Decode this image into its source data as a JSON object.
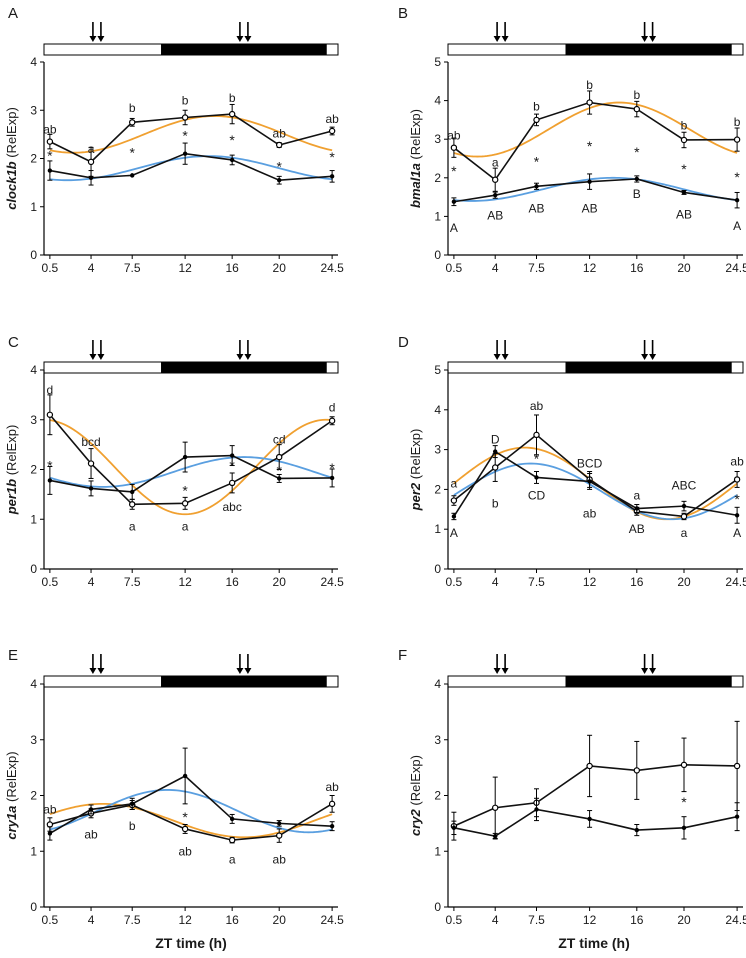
{
  "figure": {
    "xlabel": "ZT time (h)",
    "x_ticks": [
      "0.5",
      "4",
      "7.5",
      "12",
      "16",
      "20",
      "24.5"
    ],
    "colors": {
      "line": "#111111",
      "orange_fit": "#f0a030",
      "blue_fit": "#5a9fe0",
      "dark_bar": "#000000",
      "light_bar": "#ffffff"
    }
  },
  "chart_data": [
    {
      "panel": "A",
      "type": "line",
      "gene": "clock1b",
      "ylabel_suffix": " (RelExp)",
      "x": [
        0.5,
        4,
        7.5,
        12,
        16,
        20,
        24.5
      ],
      "ylim": [
        0,
        4
      ],
      "yticks": [
        "0",
        "1",
        "2",
        "3",
        "4"
      ],
      "light_dark": [
        {
          "from": 0,
          "to": 10,
          "phase": "light"
        },
        {
          "from": 10,
          "to": 24,
          "phase": "dark"
        },
        {
          "from": 24,
          "to": 25,
          "phase": "light"
        }
      ],
      "arrow_times": [
        4.5,
        17
      ],
      "series": [
        {
          "name": "upper",
          "marker": "open",
          "values": [
            2.35,
            1.93,
            2.75,
            2.85,
            2.92,
            2.28,
            2.57
          ],
          "errors": [
            0.15,
            0.3,
            0.08,
            0.15,
            0.2,
            0.05,
            0.08
          ]
        },
        {
          "name": "lower",
          "marker": "filled",
          "values": [
            1.75,
            1.6,
            1.65,
            2.1,
            1.97,
            1.55,
            1.63
          ],
          "errors": [
            0.2,
            0.15,
            0.0,
            0.22,
            0.1,
            0.08,
            0.12
          ]
        }
      ],
      "fits": [
        {
          "name": "orange",
          "mesor": 2.5,
          "amp": 0.38,
          "peak": 14.5
        },
        {
          "name": "blue",
          "mesor": 1.8,
          "amp": 0.25,
          "peak": 14.0
        }
      ],
      "labels": [
        {
          "text": "ab",
          "x": 0.5,
          "y": 2.6
        },
        {
          "text": "a",
          "x": 4,
          "y": 2.2
        },
        {
          "text": "b",
          "x": 7.5,
          "y": 3.05
        },
        {
          "text": "b",
          "x": 12,
          "y": 3.2
        },
        {
          "text": "b",
          "x": 16,
          "y": 3.25
        },
        {
          "text": "ab",
          "x": 20,
          "y": 2.52
        },
        {
          "text": "ab",
          "x": 24.5,
          "y": 2.82
        }
      ],
      "stars": [
        {
          "x": 0.5,
          "y": 2.08
        },
        {
          "x": 7.5,
          "y": 2.15
        },
        {
          "x": 12,
          "y": 2.5
        },
        {
          "x": 16,
          "y": 2.4
        },
        {
          "x": 20,
          "y": 1.85
        },
        {
          "x": 24.5,
          "y": 2.05
        }
      ]
    },
    {
      "panel": "B",
      "type": "line",
      "gene": "bmal1a",
      "ylabel_suffix": " (RelExp)",
      "x": [
        0.5,
        4,
        7.5,
        12,
        16,
        20,
        24.5
      ],
      "ylim": [
        0,
        5
      ],
      "yticks": [
        "0",
        "1",
        "2",
        "3",
        "4",
        "5"
      ],
      "light_dark": [
        {
          "from": 0,
          "to": 10,
          "phase": "light"
        },
        {
          "from": 10,
          "to": 24,
          "phase": "dark"
        },
        {
          "from": 24,
          "to": 25,
          "phase": "light"
        }
      ],
      "arrow_times": [
        4.5,
        17
      ],
      "series": [
        {
          "name": "upper",
          "marker": "open",
          "values": [
            2.78,
            1.95,
            3.5,
            3.95,
            3.78,
            2.98,
            2.99
          ],
          "errors": [
            0.25,
            0.3,
            0.15,
            0.3,
            0.2,
            0.2,
            0.3
          ]
        },
        {
          "name": "lower",
          "marker": "filled",
          "values": [
            1.38,
            1.55,
            1.78,
            1.9,
            1.97,
            1.62,
            1.42
          ],
          "errors": [
            0.1,
            0.08,
            0.08,
            0.2,
            0.08,
            0.05,
            0.2
          ]
        }
      ],
      "fits": [
        {
          "name": "orange",
          "mesor": 3.25,
          "amp": 0.7,
          "peak": 14.5
        },
        {
          "name": "blue",
          "mesor": 1.7,
          "amp": 0.3,
          "peak": 14.0
        }
      ],
      "labels": [
        {
          "text": "ab",
          "x": 0.5,
          "y": 3.1
        },
        {
          "text": "a",
          "x": 4,
          "y": 2.4
        },
        {
          "text": "b",
          "x": 7.5,
          "y": 3.85
        },
        {
          "text": "b",
          "x": 12,
          "y": 4.4
        },
        {
          "text": "b",
          "x": 16,
          "y": 4.15
        },
        {
          "text": "b",
          "x": 20,
          "y": 3.35
        },
        {
          "text": "b",
          "x": 24.5,
          "y": 3.45
        },
        {
          "text": "A",
          "x": 0.5,
          "y": 0.7
        },
        {
          "text": "AB",
          "x": 4,
          "y": 1.02
        },
        {
          "text": "AB",
          "x": 7.5,
          "y": 1.2
        },
        {
          "text": "AB",
          "x": 12,
          "y": 1.2
        },
        {
          "text": "B",
          "x": 16,
          "y": 1.58
        },
        {
          "text": "AB",
          "x": 20,
          "y": 1.05
        },
        {
          "text": "A",
          "x": 24.5,
          "y": 0.75
        }
      ],
      "stars": [
        {
          "x": 0.5,
          "y": 2.2
        },
        {
          "x": 7.5,
          "y": 2.45
        },
        {
          "x": 12,
          "y": 2.85
        },
        {
          "x": 16,
          "y": 2.7
        },
        {
          "x": 20,
          "y": 2.25
        },
        {
          "x": 24.5,
          "y": 2.05
        }
      ]
    },
    {
      "panel": "C",
      "type": "line",
      "gene": "per1b",
      "ylabel_suffix": " (RelExp)",
      "x": [
        0.5,
        4,
        7.5,
        12,
        16,
        20,
        24.5
      ],
      "ylim": [
        0,
        4
      ],
      "yticks": [
        "0",
        "1",
        "2",
        "3",
        "4"
      ],
      "light_dark": [
        {
          "from": 0,
          "to": 10,
          "phase": "light"
        },
        {
          "from": 10,
          "to": 24,
          "phase": "dark"
        },
        {
          "from": 24,
          "to": 25,
          "phase": "light"
        }
      ],
      "arrow_times": [
        4.5,
        17
      ],
      "series": [
        {
          "name": "upper",
          "marker": "open",
          "values": [
            3.1,
            2.12,
            1.3,
            1.32,
            1.73,
            2.25,
            2.98
          ],
          "errors": [
            0.4,
            0.3,
            0.1,
            0.12,
            0.2,
            0.25,
            0.08
          ]
        },
        {
          "name": "lower",
          "marker": "filled",
          "values": [
            1.78,
            1.62,
            1.55,
            2.25,
            2.28,
            1.82,
            1.83
          ],
          "errors": [
            0.28,
            0.15,
            0.15,
            0.3,
            0.2,
            0.08,
            0.18
          ]
        }
      ],
      "fits": [
        {
          "name": "orange",
          "mesor": 2.05,
          "amp": 0.95,
          "peak": 0.0
        },
        {
          "name": "blue",
          "mesor": 1.95,
          "amp": 0.3,
          "peak": 17.0
        }
      ],
      "labels": [
        {
          "text": "d",
          "x": 0.5,
          "y": 3.6
        },
        {
          "text": "bcd",
          "x": 4,
          "y": 2.55
        },
        {
          "text": "a",
          "x": 7.5,
          "y": 0.85
        },
        {
          "text": "a",
          "x": 12,
          "y": 0.85
        },
        {
          "text": "abc",
          "x": 16,
          "y": 1.25
        },
        {
          "text": "cd",
          "x": 20,
          "y": 2.6
        },
        {
          "text": "d",
          "x": 24.5,
          "y": 3.25
        }
      ],
      "stars": [
        {
          "x": 0.5,
          "y": 2.1
        },
        {
          "x": 12,
          "y": 1.6
        },
        {
          "x": 16,
          "y": 2.1
        },
        {
          "x": 20,
          "y": 2.0
        },
        {
          "x": 24.5,
          "y": 2.05
        }
      ]
    },
    {
      "panel": "D",
      "type": "line",
      "gene": "per2",
      "ylabel_suffix": " (RelExp)",
      "x": [
        0.5,
        4,
        7.5,
        12,
        16,
        20,
        24.5
      ],
      "ylim": [
        0,
        5
      ],
      "yticks": [
        "0",
        "1",
        "2",
        "3",
        "4",
        "5"
      ],
      "light_dark": [
        {
          "from": 0,
          "to": 10,
          "phase": "light"
        },
        {
          "from": 10,
          "to": 24,
          "phase": "dark"
        },
        {
          "from": 24,
          "to": 25,
          "phase": "light"
        }
      ],
      "arrow_times": [
        4.5,
        17
      ],
      "series": [
        {
          "name": "upper",
          "marker": "open",
          "values": [
            1.72,
            2.55,
            3.37,
            2.25,
            1.45,
            1.32,
            2.25
          ],
          "errors": [
            0.12,
            0.35,
            0.5,
            0.2,
            0.1,
            0.08,
            0.2
          ]
        },
        {
          "name": "lower",
          "marker": "filled",
          "values": [
            1.32,
            2.95,
            2.3,
            2.2,
            1.52,
            1.58,
            1.35
          ],
          "errors": [
            0.08,
            0.15,
            0.15,
            0.2,
            0.1,
            0.12,
            0.2
          ]
        }
      ],
      "fits": [
        {
          "name": "orange",
          "mesor": 2.15,
          "amp": 0.9,
          "peak": 6.5
        },
        {
          "name": "blue",
          "mesor": 1.95,
          "amp": 0.7,
          "peak": 7.0
        }
      ],
      "labels": [
        {
          "text": "a",
          "x": 0.5,
          "y": 2.15
        },
        {
          "text": "b",
          "x": 4,
          "y": 1.65
        },
        {
          "text": "ab",
          "x": 7.5,
          "y": 4.1
        },
        {
          "text": "ab",
          "x": 12,
          "y": 1.4
        },
        {
          "text": "a",
          "x": 16,
          "y": 1.85
        },
        {
          "text": "a",
          "x": 20,
          "y": 0.9
        },
        {
          "text": "ab",
          "x": 24.5,
          "y": 2.7
        },
        {
          "text": "A",
          "x": 0.5,
          "y": 0.9
        },
        {
          "text": "D",
          "x": 4,
          "y": 3.25
        },
        {
          "text": "CD",
          "x": 7.5,
          "y": 1.85
        },
        {
          "text": "BCD",
          "x": 12,
          "y": 2.65
        },
        {
          "text": "AB",
          "x": 16,
          "y": 1.0
        },
        {
          "text": "ABC",
          "x": 20,
          "y": 2.1
        },
        {
          "text": "A",
          "x": 24.5,
          "y": 0.9
        }
      ],
      "stars": [
        {
          "x": 7.5,
          "y": 2.8
        },
        {
          "x": 24.5,
          "y": 1.78
        }
      ]
    },
    {
      "panel": "E",
      "type": "line",
      "gene": "cry1a",
      "ylabel_suffix": " (RelExp)",
      "x": [
        0.5,
        4,
        7.5,
        12,
        16,
        20,
        24.5
      ],
      "ylim": [
        0,
        4
      ],
      "yticks": [
        "0",
        "1",
        "2",
        "3",
        "4"
      ],
      "light_dark": [
        {
          "from": 0,
          "to": 10,
          "phase": "light"
        },
        {
          "from": 10,
          "to": 24,
          "phase": "dark"
        },
        {
          "from": 24,
          "to": 25,
          "phase": "light"
        }
      ],
      "arrow_times": [
        4.5,
        17
      ],
      "series": [
        {
          "name": "upper",
          "marker": "open",
          "values": [
            1.48,
            1.68,
            1.83,
            1.4,
            1.2,
            1.28,
            1.85
          ],
          "errors": [
            0.12,
            0.08,
            0.08,
            0.08,
            0.05,
            0.12,
            0.15
          ]
        },
        {
          "name": "lower",
          "marker": "filled",
          "values": [
            1.32,
            1.75,
            1.85,
            2.35,
            1.58,
            1.5,
            1.45
          ],
          "errors": [
            0.12,
            0.08,
            0.1,
            0.5,
            0.08,
            0.05,
            0.08
          ]
        }
      ],
      "fits": [
        {
          "name": "orange",
          "mesor": 1.55,
          "amp": 0.3,
          "peak": 5.0
        },
        {
          "name": "blue",
          "mesor": 1.72,
          "amp": 0.38,
          "peak": 10.5
        }
      ],
      "labels": [
        {
          "text": "ab",
          "x": 0.5,
          "y": 1.75
        },
        {
          "text": "ab",
          "x": 4,
          "y": 1.3
        },
        {
          "text": "b",
          "x": 7.5,
          "y": 1.45
        },
        {
          "text": "ab",
          "x": 12,
          "y": 1.0
        },
        {
          "text": "a",
          "x": 16,
          "y": 0.85
        },
        {
          "text": "ab",
          "x": 20,
          "y": 0.85
        },
        {
          "text": "ab",
          "x": 24.5,
          "y": 2.15
        }
      ],
      "stars": [
        {
          "x": 12,
          "y": 1.63
        }
      ]
    },
    {
      "panel": "F",
      "type": "line",
      "gene": "cry2",
      "ylabel_suffix": " (RelExp)",
      "x": [
        0.5,
        4,
        7.5,
        12,
        16,
        20,
        24.5
      ],
      "ylim": [
        0,
        4
      ],
      "yticks": [
        "0",
        "1",
        "2",
        "3",
        "4"
      ],
      "light_dark": [
        {
          "from": 0,
          "to": 10,
          "phase": "light"
        },
        {
          "from": 10,
          "to": 24,
          "phase": "dark"
        },
        {
          "from": 24,
          "to": 25,
          "phase": "light"
        }
      ],
      "arrow_times": [
        4.5,
        17
      ],
      "series": [
        {
          "name": "upper",
          "marker": "open",
          "values": [
            1.45,
            1.78,
            1.87,
            2.53,
            2.45,
            2.55,
            2.53
          ],
          "errors": [
            0.25,
            0.55,
            0.25,
            0.55,
            0.52,
            0.48,
            0.8
          ]
        },
        {
          "name": "lower",
          "marker": "filled",
          "values": [
            1.42,
            1.27,
            1.75,
            1.58,
            1.38,
            1.42,
            1.62
          ],
          "errors": [
            0.12,
            0.05,
            0.2,
            0.15,
            0.1,
            0.2,
            0.25
          ]
        }
      ],
      "fits": [],
      "labels": [],
      "stars": [
        {
          "x": 20,
          "y": 1.9
        }
      ]
    }
  ]
}
